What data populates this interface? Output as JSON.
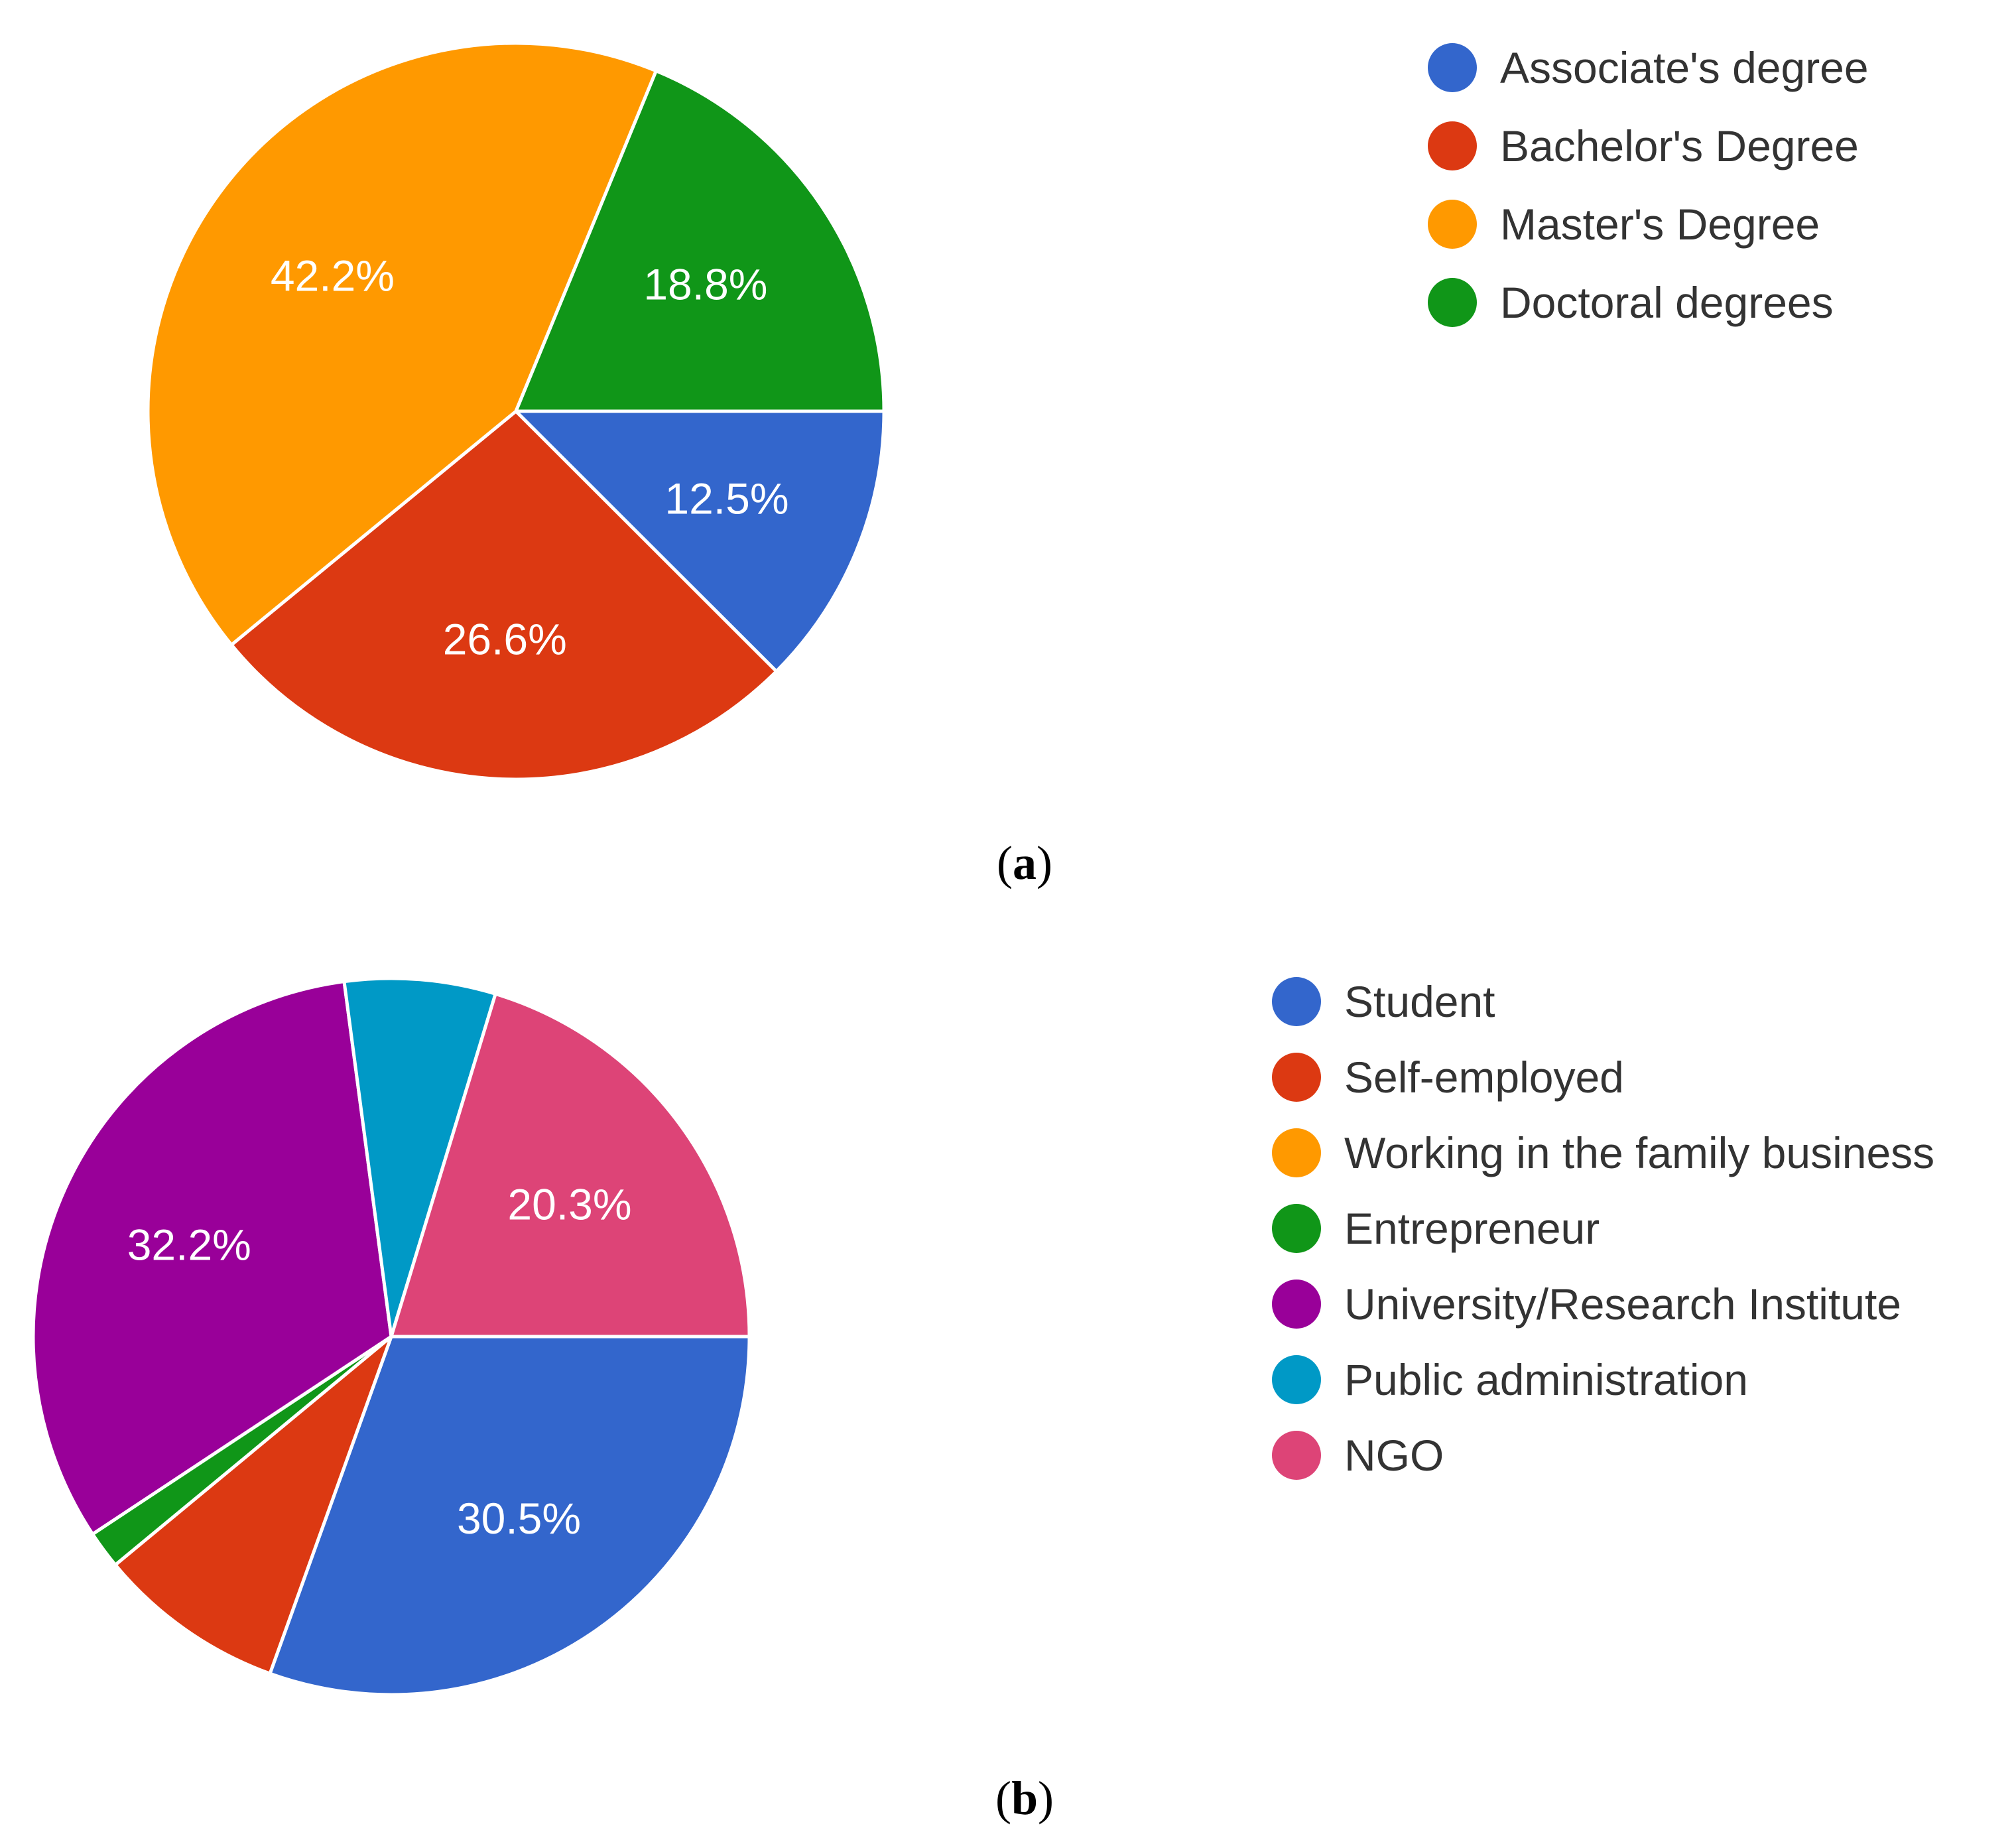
{
  "chart_data": [
    {
      "type": "pie",
      "panel_label": "a",
      "legend_position": "right",
      "categories": [
        "Associate's degree",
        "Bachelor's Degree",
        "Master's Degree",
        "Doctoral degrees"
      ],
      "values": [
        12.5,
        26.6,
        42.2,
        18.8
      ],
      "value_labels": [
        "12.5%",
        "26.6%",
        "42.2%",
        "18.8%"
      ],
      "colors": [
        "#3366cc",
        "#dc3912",
        "#ff9900",
        "#109618"
      ],
      "start_angle_deg": 0,
      "direction": "clockwise"
    },
    {
      "type": "pie",
      "panel_label": "b",
      "legend_position": "right",
      "categories": [
        "Student",
        "Self-employed",
        "Working in the family business",
        "Entrepreneur",
        "University/Research Institute",
        "Public administration",
        "NGO"
      ],
      "values": [
        30.5,
        8.5,
        0,
        1.7,
        32.2,
        6.8,
        20.3
      ],
      "value_labels": [
        "30.5%",
        "",
        "",
        "",
        "32.2%",
        "",
        "20.3%"
      ],
      "colors": [
        "#3366cc",
        "#dc3912",
        "#ff9900",
        "#109618",
        "#990099",
        "#0099c6",
        "#dd4477"
      ],
      "start_angle_deg": 0,
      "direction": "clockwise"
    }
  ],
  "captions": {
    "a": {
      "open": "(",
      "letter": "a",
      "close": ")"
    },
    "b": {
      "open": "(",
      "letter": "b",
      "close": ")"
    }
  }
}
